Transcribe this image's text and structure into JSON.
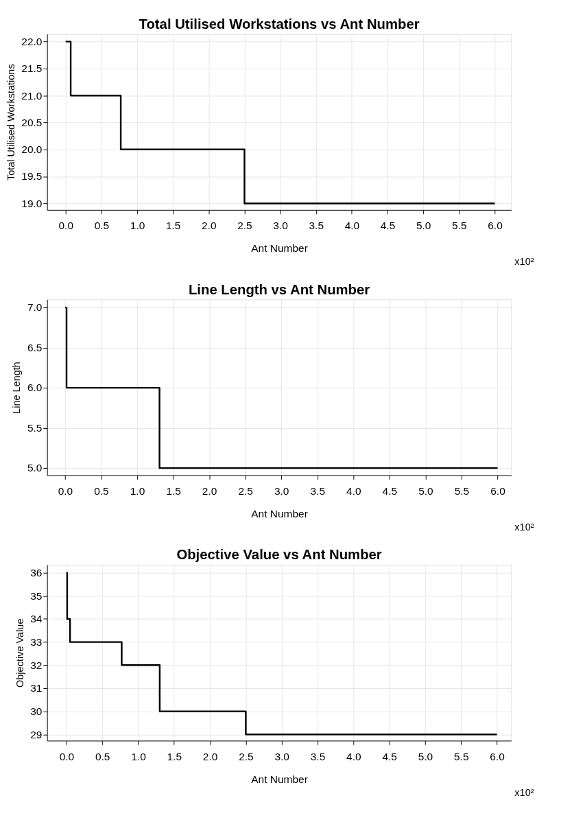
{
  "chart_data": [
    {
      "type": "step",
      "title": "Total Utilised Workstations vs Ant Number",
      "xlabel": "Ant Number",
      "ylabel": "Total Utilised Workstations",
      "annotations": [
        "x10²"
      ],
      "x": [
        0,
        0.07,
        0.77,
        2.5,
        6.0
      ],
      "values": [
        22,
        21,
        20,
        19,
        19
      ],
      "color": "#000000",
      "xlim": [
        -0.26,
        6.23
      ],
      "xticks": [
        {
          "value": 0,
          "label": "0.0"
        },
        0.5,
        {
          "value": 1,
          "label": "1.0"
        },
        1.5,
        {
          "value": 2,
          "label": "2.0"
        },
        2.5,
        {
          "value": 3,
          "label": "3.0"
        },
        3.5,
        {
          "value": 4,
          "label": "4.0"
        },
        4.5,
        {
          "value": 5,
          "label": "5.0"
        },
        5.5,
        {
          "value": 6,
          "label": "6.0"
        }
      ],
      "ylim": [
        18.88,
        22.14
      ],
      "yticks": [
        {
          "value": 19,
          "label": "19.0"
        },
        19.5,
        {
          "value": 20,
          "label": "20.0"
        },
        20.5,
        {
          "value": 21,
          "label": "21.0"
        },
        21.5,
        {
          "value": 22,
          "label": "22.0"
        }
      ],
      "grid": true
    },
    {
      "type": "step",
      "title": "Line Length vs Ant Number",
      "xlabel": "Ant Number",
      "ylabel": "Line Length",
      "annotations": [
        "x10²"
      ],
      "x": [
        0,
        0.02,
        1.31,
        6.0
      ],
      "values": [
        7,
        6,
        5,
        5
      ],
      "color": "#000000",
      "xlim": [
        -0.25,
        6.19
      ],
      "xticks": [
        {
          "value": 0,
          "label": "0.0"
        },
        0.5,
        {
          "value": 1,
          "label": "1.0"
        },
        1.5,
        {
          "value": 2,
          "label": "2.0"
        },
        2.5,
        {
          "value": 3,
          "label": "3.0"
        },
        3.5,
        {
          "value": 4,
          "label": "4.0"
        },
        4.5,
        {
          "value": 5,
          "label": "5.0"
        },
        5.5,
        {
          "value": 6,
          "label": "6.0"
        }
      ],
      "ylim": [
        4.91,
        7.1
      ],
      "yticks": [
        {
          "value": 5,
          "label": "5.0"
        },
        5.5,
        {
          "value": 6,
          "label": "6.0"
        },
        6.5,
        {
          "value": 7,
          "label": "7.0"
        }
      ],
      "grid": true
    },
    {
      "type": "step",
      "title": "Objective Value vs Ant Number",
      "xlabel": "Ant Number",
      "ylabel": "Objective Value",
      "annotations": [
        "x10²"
      ],
      "x": [
        0,
        0.01,
        0.05,
        0.77,
        1.3,
        2.5,
        6.0
      ],
      "values": [
        36,
        34,
        33,
        32,
        30,
        29,
        29
      ],
      "color": "#000000",
      "xlim": [
        -0.27,
        6.2
      ],
      "xticks": [
        {
          "value": 0,
          "label": "0.0"
        },
        0.5,
        {
          "value": 1,
          "label": "1.0"
        },
        1.5,
        {
          "value": 2,
          "label": "2.0"
        },
        2.5,
        {
          "value": 3,
          "label": "3.0"
        },
        3.5,
        {
          "value": 4,
          "label": "4.0"
        },
        4.5,
        {
          "value": 5,
          "label": "5.0"
        },
        5.5,
        {
          "value": 6,
          "label": "6.0"
        }
      ],
      "ylim": [
        28.73,
        36.34
      ],
      "yticks": [
        29,
        30,
        31,
        32,
        33,
        34,
        35,
        36
      ],
      "grid": true
    }
  ]
}
